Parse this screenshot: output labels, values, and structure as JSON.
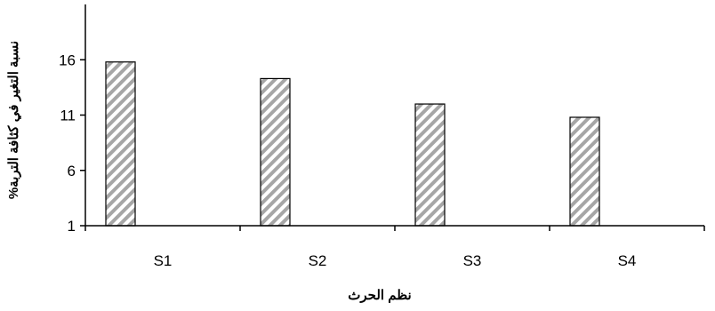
{
  "chart_data": {
    "type": "bar",
    "title": "",
    "xlabel": "نظم الحرث",
    "ylabel": "نسبة التغير في كثافة التربة%",
    "categories": [
      "S1",
      "S2",
      "S3",
      "S4"
    ],
    "series": [
      {
        "values": [
          15.8,
          14.3,
          12.0,
          10.8
        ]
      }
    ],
    "ylim": [
      1,
      21
    ],
    "yticks": [
      1,
      6,
      11,
      16
    ],
    "grid": false,
    "legend": "none",
    "bar_pattern": "diagonal-hatch",
    "colors": {
      "bar_fill": "#ffffff",
      "hatch": "#a6a6a6",
      "outline": "#000000",
      "axis": "#000000"
    }
  }
}
